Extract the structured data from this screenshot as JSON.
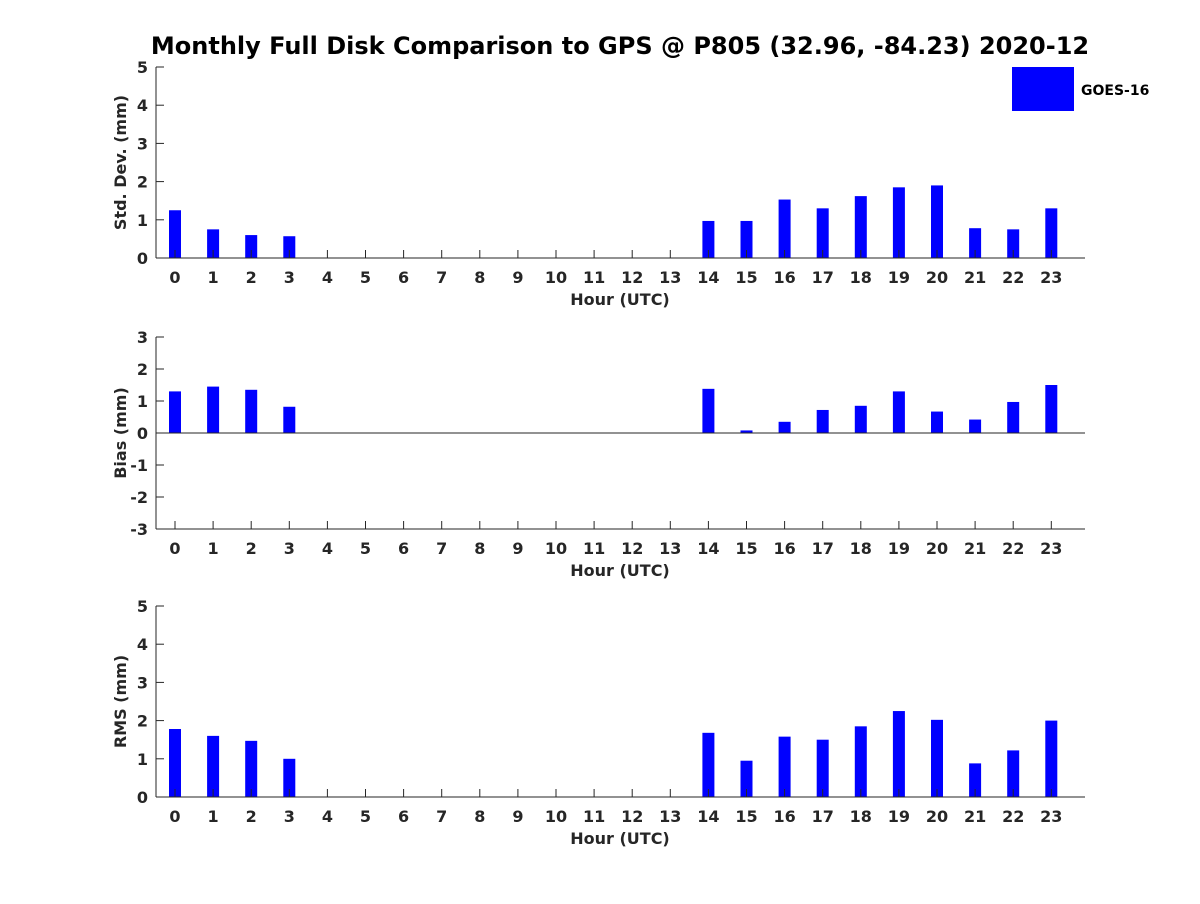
{
  "title": "Monthly Full Disk Comparison to GPS @ P805 (32.96, -84.23) 2020-12",
  "legend": {
    "label": "GOES-16",
    "color": "#0000ff",
    "placement": "top-right"
  },
  "chart_data": [
    {
      "type": "bar",
      "xlabel": "Hour (UTC)",
      "ylabel": "Std. Dev. (mm)",
      "ylim": [
        0,
        5
      ],
      "yticks": [
        0,
        1,
        2,
        3,
        4,
        5
      ],
      "categories": [
        "0",
        "1",
        "2",
        "3",
        "4",
        "5",
        "6",
        "7",
        "8",
        "9",
        "10",
        "11",
        "12",
        "13",
        "14",
        "15",
        "16",
        "17",
        "18",
        "19",
        "20",
        "21",
        "22",
        "23"
      ],
      "series": [
        {
          "name": "GOES-16",
          "values": [
            1.25,
            0.75,
            0.6,
            0.57,
            null,
            null,
            null,
            null,
            null,
            null,
            null,
            null,
            null,
            null,
            0.97,
            0.97,
            1.53,
            1.3,
            1.62,
            1.85,
            1.9,
            0.78,
            0.75,
            1.3
          ]
        }
      ],
      "grid": false
    },
    {
      "type": "bar",
      "xlabel": "Hour (UTC)",
      "ylabel": "Bias (mm)",
      "ylim": [
        -3,
        3
      ],
      "yticks": [
        -3,
        -2,
        -1,
        0,
        1,
        2,
        3
      ],
      "categories": [
        "0",
        "1",
        "2",
        "3",
        "4",
        "5",
        "6",
        "7",
        "8",
        "9",
        "10",
        "11",
        "12",
        "13",
        "14",
        "15",
        "16",
        "17",
        "18",
        "19",
        "20",
        "21",
        "22",
        "23"
      ],
      "series": [
        {
          "name": "GOES-16",
          "values": [
            1.3,
            1.45,
            1.35,
            0.82,
            null,
            null,
            null,
            null,
            null,
            null,
            null,
            null,
            null,
            null,
            1.38,
            0.08,
            0.35,
            0.72,
            0.85,
            1.3,
            0.67,
            0.42,
            0.97,
            1.5
          ]
        }
      ],
      "grid": false
    },
    {
      "type": "bar",
      "xlabel": "Hour (UTC)",
      "ylabel": "RMS (mm)",
      "ylim": [
        0,
        5
      ],
      "yticks": [
        0,
        1,
        2,
        3,
        4,
        5
      ],
      "categories": [
        "0",
        "1",
        "2",
        "3",
        "4",
        "5",
        "6",
        "7",
        "8",
        "9",
        "10",
        "11",
        "12",
        "13",
        "14",
        "15",
        "16",
        "17",
        "18",
        "19",
        "20",
        "21",
        "22",
        "23"
      ],
      "series": [
        {
          "name": "GOES-16",
          "values": [
            1.78,
            1.6,
            1.47,
            1.0,
            null,
            null,
            null,
            null,
            null,
            null,
            null,
            null,
            null,
            null,
            1.68,
            0.95,
            1.58,
            1.5,
            1.85,
            2.25,
            2.02,
            0.88,
            1.22,
            2.0
          ]
        }
      ],
      "grid": false
    }
  ]
}
